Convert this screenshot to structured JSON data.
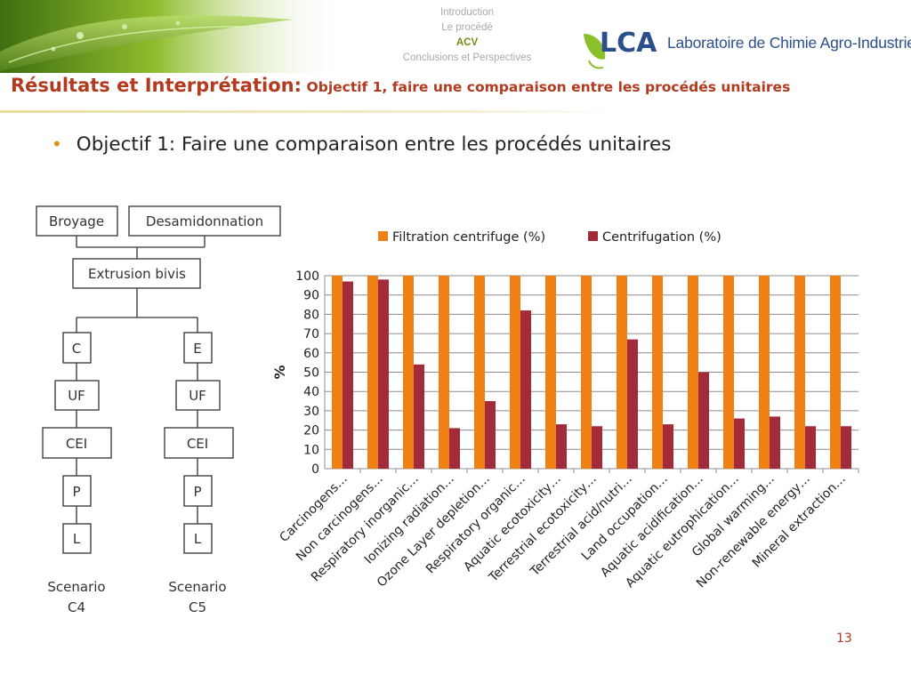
{
  "header": {
    "nav": [
      "Introduction",
      "Le procédé",
      "ACV",
      "Conclusions et Perspectives"
    ],
    "active_nav": "ACV",
    "logo_mark": "LCA",
    "logo_lab": "Laboratoire de Chimie Agro-Industrielle"
  },
  "slide": {
    "title_main": "Résultats et Interprétation:",
    "title_sub": "Objectif 1, faire une comparaison entre les procédés unitaires",
    "bullet": "Objectif 1: Faire une comparaison entre les procédés unitaires",
    "page_number": "13"
  },
  "flow": {
    "top_left": "Broyage",
    "top_right": "Desamidonnation",
    "middle": "Extrusion bivis",
    "left_steps": [
      "C",
      "UF",
      "CEI",
      "P",
      "L"
    ],
    "right_steps": [
      "E",
      "UF",
      "CEI",
      "P",
      "L"
    ],
    "left_scenario": [
      "Scenario",
      "C4"
    ],
    "right_scenario": [
      "Scenario",
      "C5"
    ]
  },
  "chart_data": {
    "type": "bar",
    "title": "",
    "xlabel": "",
    "ylabel": "%",
    "ylim": [
      0,
      100
    ],
    "yticks": [
      0,
      10,
      20,
      30,
      40,
      50,
      60,
      70,
      80,
      90,
      100
    ],
    "grid": true,
    "legend_position": "top",
    "categories": [
      "Carcinogens…",
      "Non carcinogens…",
      "Respiratory inorganic…",
      "Ionizing radiation…",
      "Ozone Layer depletion…",
      "Respiratory organic…",
      "Aquatic ecotoxicity…",
      "Terrestrial ecotoxicity…",
      "Terrestrial acid/nutri…",
      "Land occupation…",
      "Aquatic acidification…",
      "Aquatic eutrophication…",
      "Global warming…",
      "Non-renewable energy…",
      "Mineral extraction…"
    ],
    "series": [
      {
        "name": "Filtration centrifuge (%)",
        "color": "#f07f14",
        "values": [
          100,
          100,
          100,
          100,
          100,
          100,
          100,
          100,
          100,
          100,
          100,
          100,
          100,
          100,
          100
        ]
      },
      {
        "name": "Centrifugation (%)",
        "color": "#a32a38",
        "values": [
          97,
          98,
          54,
          21,
          35,
          82,
          23,
          22,
          67,
          23,
          50,
          26,
          27,
          22,
          22
        ]
      }
    ]
  }
}
